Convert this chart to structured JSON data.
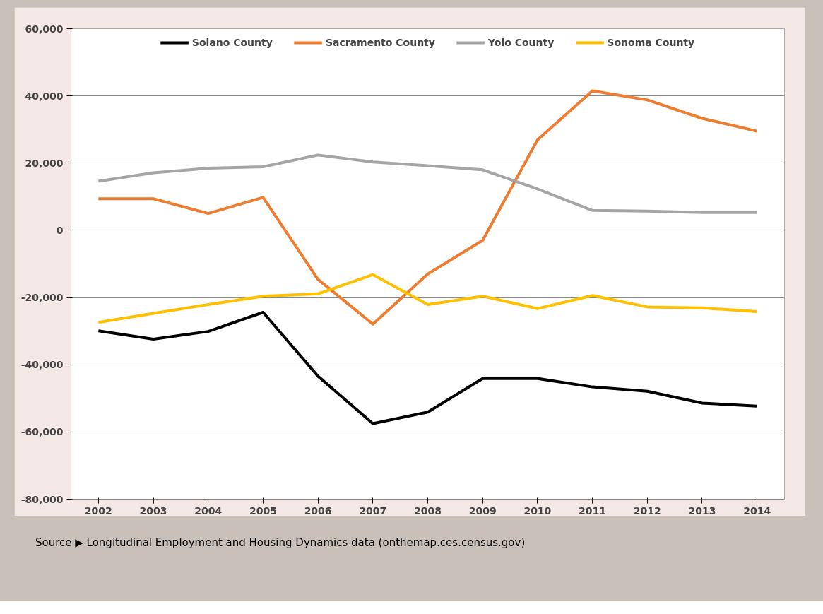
{
  "chart_data": {
    "type": "line",
    "categories": [
      "2002",
      "2003",
      "2004",
      "2005",
      "2006",
      "2007",
      "2008",
      "2009",
      "2010",
      "2011",
      "2012",
      "2013",
      "2014"
    ],
    "series": [
      {
        "name": "Solano County",
        "color": "#000000",
        "values": [
          -29900,
          -32400,
          -30100,
          -24400,
          -43400,
          -57500,
          -54100,
          -44100,
          -44100,
          -46600,
          -47900,
          -51400,
          -52300
        ]
      },
      {
        "name": "Sacramento County",
        "color": "#ed7d31",
        "values": [
          9400,
          9400,
          5000,
          9800,
          -14600,
          -27900,
          -13000,
          -3000,
          26900,
          41500,
          38800,
          33300,
          29500
        ]
      },
      {
        "name": "Yolo County",
        "color": "#a5a5a5",
        "values": [
          14600,
          17100,
          18500,
          18900,
          22400,
          20300,
          19200,
          18000,
          12300,
          5900,
          5700,
          5300,
          5300
        ]
      },
      {
        "name": "Sonoma County",
        "color": "#ffc000",
        "values": [
          -27400,
          -24700,
          -22100,
          -19600,
          -18900,
          -13200,
          -22100,
          -19600,
          -23300,
          -19400,
          -22800,
          -23100,
          -24200
        ]
      }
    ],
    "ylim": [
      -80000,
      60000
    ],
    "yticks": [
      {
        "value": -80000,
        "label": "-80,000"
      },
      {
        "value": -60000,
        "label": "-60,000"
      },
      {
        "value": -40000,
        "label": "-40,000"
      },
      {
        "value": -20000,
        "label": "-20,000"
      },
      0,
      {
        "value": 20000,
        "label": "20,000"
      },
      {
        "value": 40000,
        "label": "40,000"
      },
      {
        "value": 60000,
        "label": "60,000"
      }
    ],
    "grid": "y",
    "legend": "top",
    "marker": "none",
    "line_style": "solid",
    "annotations": [
      "Source ▶ Longitudinal Employment and Housing Dynamics data (onthemap.ces.census.gov)"
    ]
  }
}
